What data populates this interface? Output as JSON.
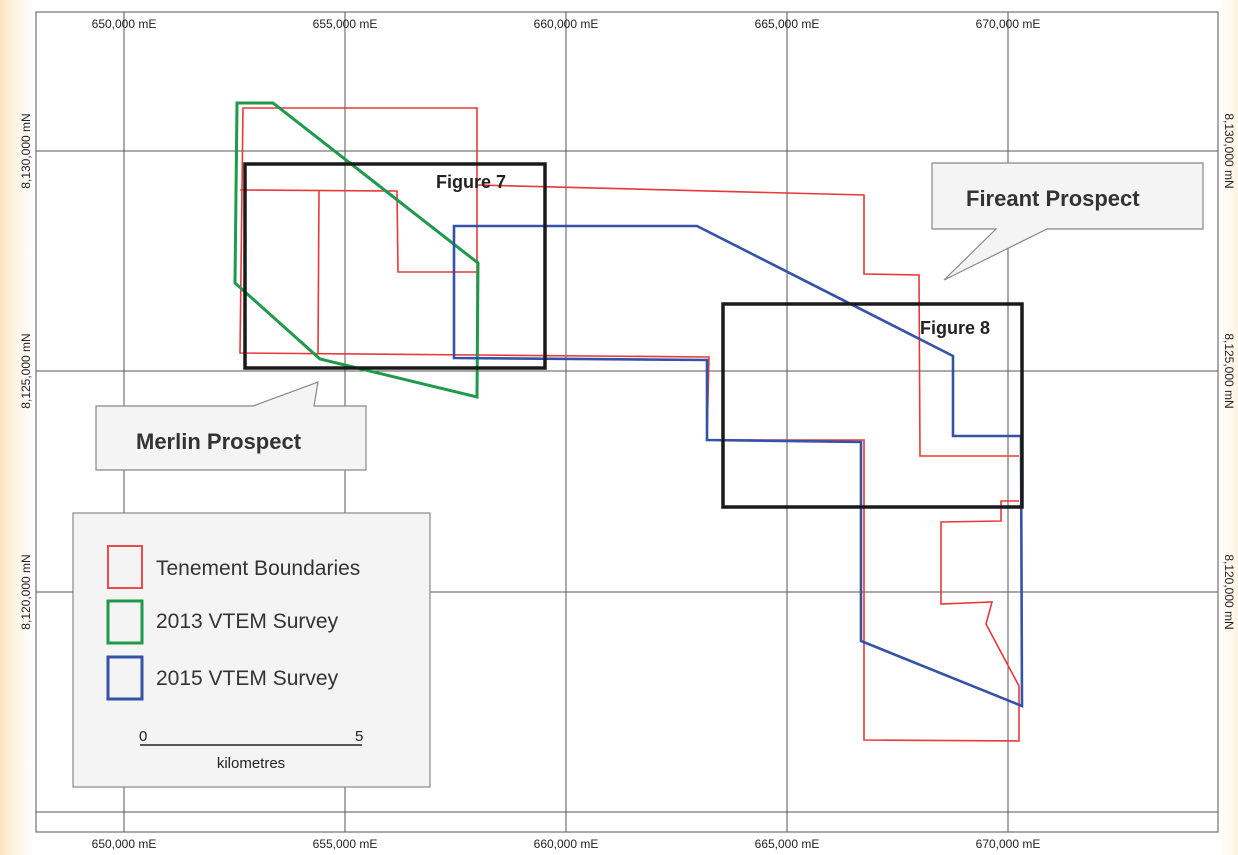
{
  "map": {
    "x_ticks": [
      {
        "label": "650,000 mE",
        "value": 650000
      },
      {
        "label": "655,000 mE",
        "value": 655000
      },
      {
        "label": "660,000 mE",
        "value": 660000
      },
      {
        "label": "665,000 mE",
        "value": 665000
      },
      {
        "label": "670,000 mE",
        "value": 670000
      }
    ],
    "y_ticks": [
      {
        "label": "8,130,000 mN",
        "value": 8130000
      },
      {
        "label": "8,125,000 mN",
        "value": 8125000
      },
      {
        "label": "8,120,000 mN",
        "value": 8120000
      }
    ],
    "callouts": {
      "merlin": "Merlin Prospect",
      "fireant": "Fireant Prospect"
    },
    "figures": {
      "fig7": "Figure 7",
      "fig8": "Figure 8"
    },
    "legend": {
      "items": [
        {
          "label": "Tenement Boundaries",
          "color": "#e8393a"
        },
        {
          "label": "2013 VTEM Survey",
          "color": "#1f9a4b"
        },
        {
          "label": "2015 VTEM Survey",
          "color": "#3453a8"
        }
      ],
      "scale": {
        "start": "0",
        "end": "5",
        "unit": "kilometres"
      }
    },
    "colors": {
      "tenement": "#e8393a",
      "vtem2013": "#1f9a4b",
      "vtem2015": "#3453a8",
      "figure_box": "#1a1a1a",
      "grid": "#555555"
    }
  }
}
